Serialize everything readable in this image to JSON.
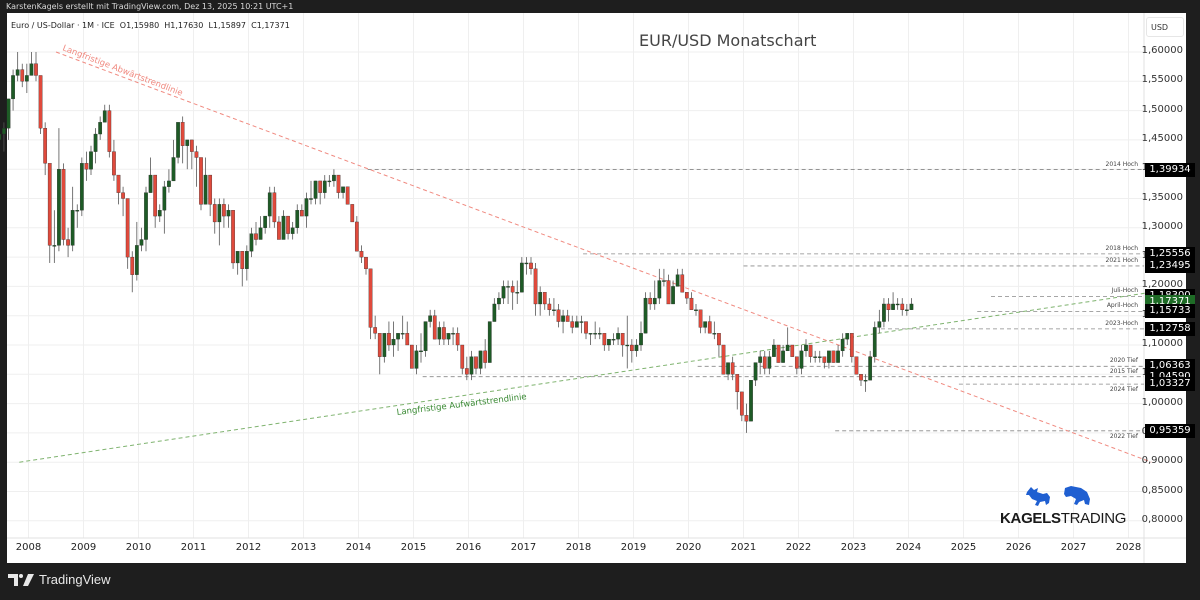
{
  "header": {
    "attribution": "KarstenKagels erstellt mit TradingView.com, Dez 13, 2025 10:21 UTC+1"
  },
  "legend": {
    "symbol": "Euro / US-Dollar · 1M · ICE",
    "open": "O1,15980",
    "high": "H1,17630",
    "low": "L1,15897",
    "close": "C1,17371"
  },
  "footer": {
    "logo_text": "TradingView"
  },
  "brand": {
    "bold": "KAGELS",
    "light": "TRADING",
    "color": "#1f5fd1"
  },
  "chart_data": {
    "type": "candlestick",
    "title": "EUR/USD Monatschart",
    "xlabel": "",
    "ylabel": "USD",
    "currency": "USD",
    "interval": "1M",
    "ylim": [
      0.78,
      1.63
    ],
    "grid": true,
    "x_ticks": [
      "2008",
      "2009",
      "2010",
      "2011",
      "2012",
      "2013",
      "2014",
      "2015",
      "2016",
      "2017",
      "2018",
      "2019",
      "2020",
      "2021",
      "2022",
      "2023",
      "2024",
      "2025",
      "2026",
      "2027",
      "2028"
    ],
    "y_ticks": [
      "1,60000",
      "1,55000",
      "1,50000",
      "1,45000",
      "1,40000",
      "1,35000",
      "1,30000",
      "1,25000",
      "1,20000",
      "1,15000",
      "1,10000",
      "1,05000",
      "1,00000",
      "0,95000",
      "0,90000",
      "0,85000",
      "0,80000"
    ],
    "y_tick_values": [
      1.6,
      1.55,
      1.5,
      1.45,
      1.4,
      1.35,
      1.3,
      1.25,
      1.2,
      1.15,
      1.1,
      1.05,
      1.0,
      0.95,
      0.9,
      0.85,
      0.8
    ],
    "colors": {
      "up": "#1e5b26",
      "down": "#e04a3c",
      "downtrend": "#f08a80",
      "uptrend": "#7fb36f",
      "level": "#888888"
    },
    "start": "2007-11",
    "candles_ohlc": [
      [
        1.45,
        1.49,
        1.44,
        1.46
      ],
      [
        1.46,
        1.48,
        1.43,
        1.47
      ],
      [
        1.47,
        1.52,
        1.45,
        1.52
      ],
      [
        1.52,
        1.57,
        1.5,
        1.56
      ],
      [
        1.56,
        1.6,
        1.55,
        1.57
      ],
      [
        1.57,
        1.58,
        1.54,
        1.55
      ],
      [
        1.55,
        1.58,
        1.53,
        1.56
      ],
      [
        1.56,
        1.6,
        1.56,
        1.58
      ],
      [
        1.58,
        1.6,
        1.55,
        1.56
      ],
      [
        1.56,
        1.56,
        1.46,
        1.47
      ],
      [
        1.47,
        1.48,
        1.39,
        1.41
      ],
      [
        1.41,
        1.41,
        1.24,
        1.27
      ],
      [
        1.27,
        1.33,
        1.24,
        1.27
      ],
      [
        1.27,
        1.47,
        1.26,
        1.4
      ],
      [
        1.4,
        1.41,
        1.27,
        1.28
      ],
      [
        1.28,
        1.3,
        1.25,
        1.27
      ],
      [
        1.27,
        1.37,
        1.26,
        1.33
      ],
      [
        1.33,
        1.34,
        1.3,
        1.33
      ],
      [
        1.33,
        1.42,
        1.32,
        1.41
      ],
      [
        1.41,
        1.43,
        1.38,
        1.4
      ],
      [
        1.4,
        1.44,
        1.39,
        1.43
      ],
      [
        1.43,
        1.47,
        1.41,
        1.46
      ],
      [
        1.46,
        1.49,
        1.45,
        1.48
      ],
      [
        1.48,
        1.51,
        1.49,
        1.5
      ],
      [
        1.5,
        1.51,
        1.42,
        1.43
      ],
      [
        1.43,
        1.45,
        1.38,
        1.39
      ],
      [
        1.39,
        1.38,
        1.34,
        1.36
      ],
      [
        1.36,
        1.37,
        1.32,
        1.35
      ],
      [
        1.35,
        1.35,
        1.23,
        1.25
      ],
      [
        1.25,
        1.26,
        1.19,
        1.22
      ],
      [
        1.22,
        1.31,
        1.21,
        1.27
      ],
      [
        1.27,
        1.3,
        1.26,
        1.28
      ],
      [
        1.28,
        1.37,
        1.26,
        1.36
      ],
      [
        1.36,
        1.42,
        1.36,
        1.39
      ],
      [
        1.39,
        1.39,
        1.3,
        1.32
      ],
      [
        1.32,
        1.34,
        1.31,
        1.33
      ],
      [
        1.33,
        1.38,
        1.29,
        1.37
      ],
      [
        1.37,
        1.4,
        1.36,
        1.38
      ],
      [
        1.38,
        1.45,
        1.38,
        1.42
      ],
      [
        1.42,
        1.48,
        1.41,
        1.48
      ],
      [
        1.48,
        1.49,
        1.41,
        1.44
      ],
      [
        1.44,
        1.45,
        1.4,
        1.45
      ],
      [
        1.45,
        1.45,
        1.4,
        1.43
      ],
      [
        1.43,
        1.44,
        1.37,
        1.42
      ],
      [
        1.42,
        1.42,
        1.33,
        1.34
      ],
      [
        1.34,
        1.42,
        1.34,
        1.39
      ],
      [
        1.39,
        1.39,
        1.32,
        1.34
      ],
      [
        1.34,
        1.35,
        1.29,
        1.31
      ],
      [
        1.31,
        1.35,
        1.27,
        1.34
      ],
      [
        1.34,
        1.35,
        1.3,
        1.32
      ],
      [
        1.32,
        1.34,
        1.3,
        1.33
      ],
      [
        1.33,
        1.33,
        1.23,
        1.24
      ],
      [
        1.24,
        1.26,
        1.22,
        1.26
      ],
      [
        1.26,
        1.26,
        1.2,
        1.23
      ],
      [
        1.23,
        1.27,
        1.21,
        1.26
      ],
      [
        1.26,
        1.3,
        1.25,
        1.29
      ],
      [
        1.29,
        1.31,
        1.27,
        1.28
      ],
      [
        1.28,
        1.32,
        1.28,
        1.3
      ],
      [
        1.3,
        1.32,
        1.29,
        1.32
      ],
      [
        1.32,
        1.37,
        1.3,
        1.36
      ],
      [
        1.36,
        1.37,
        1.3,
        1.31
      ],
      [
        1.31,
        1.32,
        1.28,
        1.28
      ],
      [
        1.28,
        1.33,
        1.28,
        1.32
      ],
      [
        1.32,
        1.32,
        1.28,
        1.29
      ],
      [
        1.29,
        1.31,
        1.28,
        1.3
      ],
      [
        1.3,
        1.34,
        1.29,
        1.33
      ],
      [
        1.33,
        1.34,
        1.32,
        1.32
      ],
      [
        1.32,
        1.36,
        1.3,
        1.35
      ],
      [
        1.35,
        1.38,
        1.34,
        1.35
      ],
      [
        1.35,
        1.38,
        1.34,
        1.38
      ],
      [
        1.38,
        1.38,
        1.34,
        1.36
      ],
      [
        1.36,
        1.39,
        1.35,
        1.38
      ],
      [
        1.38,
        1.39,
        1.37,
        1.38
      ],
      [
        1.38,
        1.4,
        1.37,
        1.39
      ],
      [
        1.39,
        1.39,
        1.35,
        1.36
      ],
      [
        1.36,
        1.37,
        1.35,
        1.37
      ],
      [
        1.37,
        1.37,
        1.34,
        1.34
      ],
      [
        1.34,
        1.34,
        1.31,
        1.31
      ],
      [
        1.31,
        1.32,
        1.26,
        1.26
      ],
      [
        1.26,
        1.27,
        1.24,
        1.25
      ],
      [
        1.25,
        1.25,
        1.22,
        1.23
      ],
      [
        1.23,
        1.23,
        1.11,
        1.13
      ],
      [
        1.13,
        1.15,
        1.11,
        1.12
      ],
      [
        1.12,
        1.12,
        1.05,
        1.08
      ],
      [
        1.08,
        1.12,
        1.07,
        1.12
      ],
      [
        1.12,
        1.14,
        1.09,
        1.1
      ],
      [
        1.1,
        1.14,
        1.08,
        1.11
      ],
      [
        1.11,
        1.12,
        1.09,
        1.12
      ],
      [
        1.12,
        1.15,
        1.11,
        1.12
      ],
      [
        1.12,
        1.14,
        1.1,
        1.1
      ],
      [
        1.1,
        1.1,
        1.06,
        1.06
      ],
      [
        1.06,
        1.1,
        1.05,
        1.09
      ],
      [
        1.09,
        1.12,
        1.07,
        1.09
      ],
      [
        1.09,
        1.14,
        1.08,
        1.14
      ],
      [
        1.14,
        1.16,
        1.13,
        1.15
      ],
      [
        1.15,
        1.16,
        1.11,
        1.11
      ],
      [
        1.11,
        1.14,
        1.1,
        1.13
      ],
      [
        1.13,
        1.14,
        1.1,
        1.11
      ],
      [
        1.11,
        1.12,
        1.1,
        1.12
      ],
      [
        1.12,
        1.13,
        1.1,
        1.12
      ],
      [
        1.12,
        1.13,
        1.09,
        1.1
      ],
      [
        1.1,
        1.1,
        1.05,
        1.06
      ],
      [
        1.06,
        1.08,
        1.04,
        1.05
      ],
      [
        1.05,
        1.09,
        1.04,
        1.08
      ],
      [
        1.08,
        1.08,
        1.05,
        1.06
      ],
      [
        1.06,
        1.09,
        1.05,
        1.09
      ],
      [
        1.09,
        1.11,
        1.06,
        1.07
      ],
      [
        1.07,
        1.14,
        1.07,
        1.14
      ],
      [
        1.14,
        1.18,
        1.14,
        1.17
      ],
      [
        1.17,
        1.19,
        1.16,
        1.18
      ],
      [
        1.18,
        1.21,
        1.17,
        1.2
      ],
      [
        1.2,
        1.21,
        1.17,
        1.2
      ],
      [
        1.2,
        1.21,
        1.16,
        1.19
      ],
      [
        1.19,
        1.21,
        1.17,
        1.19
      ],
      [
        1.19,
        1.25,
        1.19,
        1.24
      ],
      [
        1.24,
        1.25,
        1.22,
        1.24
      ],
      [
        1.24,
        1.25,
        1.22,
        1.23
      ],
      [
        1.23,
        1.24,
        1.15,
        1.17
      ],
      [
        1.17,
        1.2,
        1.15,
        1.19
      ],
      [
        1.19,
        1.19,
        1.16,
        1.17
      ],
      [
        1.17,
        1.18,
        1.15,
        1.16
      ],
      [
        1.16,
        1.18,
        1.15,
        1.16
      ],
      [
        1.16,
        1.17,
        1.13,
        1.14
      ],
      [
        1.14,
        1.16,
        1.12,
        1.15
      ],
      [
        1.15,
        1.16,
        1.14,
        1.14
      ],
      [
        1.14,
        1.15,
        1.12,
        1.13
      ],
      [
        1.13,
        1.15,
        1.13,
        1.14
      ],
      [
        1.14,
        1.15,
        1.12,
        1.14
      ],
      [
        1.14,
        1.14,
        1.11,
        1.12
      ],
      [
        1.12,
        1.12,
        1.1,
        1.12
      ],
      [
        1.12,
        1.14,
        1.11,
        1.12
      ],
      [
        1.12,
        1.13,
        1.11,
        1.12
      ],
      [
        1.12,
        1.12,
        1.09,
        1.1
      ],
      [
        1.1,
        1.11,
        1.09,
        1.11
      ],
      [
        1.11,
        1.12,
        1.1,
        1.11
      ],
      [
        1.11,
        1.13,
        1.1,
        1.12
      ],
      [
        1.12,
        1.12,
        1.08,
        1.1
      ],
      [
        1.1,
        1.15,
        1.06,
        1.1
      ],
      [
        1.1,
        1.11,
        1.07,
        1.09
      ],
      [
        1.09,
        1.11,
        1.08,
        1.1
      ],
      [
        1.1,
        1.14,
        1.09,
        1.12
      ],
      [
        1.12,
        1.19,
        1.12,
        1.18
      ],
      [
        1.18,
        1.19,
        1.16,
        1.17
      ],
      [
        1.17,
        1.21,
        1.16,
        1.18
      ],
      [
        1.18,
        1.23,
        1.17,
        1.21
      ],
      [
        1.21,
        1.23,
        1.2,
        1.21
      ],
      [
        1.21,
        1.22,
        1.18,
        1.17
      ],
      [
        1.17,
        1.21,
        1.17,
        1.2
      ],
      [
        1.2,
        1.23,
        1.2,
        1.22
      ],
      [
        1.22,
        1.23,
        1.19,
        1.19
      ],
      [
        1.19,
        1.19,
        1.17,
        1.18
      ],
      [
        1.18,
        1.19,
        1.17,
        1.16
      ],
      [
        1.16,
        1.17,
        1.15,
        1.16
      ],
      [
        1.16,
        1.16,
        1.12,
        1.13
      ],
      [
        1.13,
        1.14,
        1.12,
        1.14
      ],
      [
        1.14,
        1.15,
        1.12,
        1.12
      ],
      [
        1.12,
        1.14,
        1.11,
        1.12
      ],
      [
        1.12,
        1.12,
        1.08,
        1.1
      ],
      [
        1.1,
        1.1,
        1.05,
        1.05
      ],
      [
        1.05,
        1.07,
        1.04,
        1.07
      ],
      [
        1.07,
        1.08,
        1.04,
        1.05
      ],
      [
        1.05,
        1.04,
        0.99,
        1.02
      ],
      [
        1.02,
        1.02,
        0.97,
        0.98
      ],
      [
        0.98,
        1.0,
        0.95,
        0.97
      ],
      [
        0.97,
        1.04,
        0.97,
        1.04
      ],
      [
        1.04,
        1.07,
        1.03,
        1.07
      ],
      [
        1.07,
        1.09,
        1.05,
        1.08
      ],
      [
        1.08,
        1.09,
        1.05,
        1.06
      ],
      [
        1.06,
        1.09,
        1.05,
        1.08
      ],
      [
        1.08,
        1.11,
        1.08,
        1.1
      ],
      [
        1.1,
        1.1,
        1.07,
        1.07
      ],
      [
        1.07,
        1.1,
        1.07,
        1.09
      ],
      [
        1.09,
        1.13,
        1.09,
        1.1
      ],
      [
        1.1,
        1.1,
        1.08,
        1.08
      ],
      [
        1.08,
        1.08,
        1.05,
        1.06
      ],
      [
        1.06,
        1.1,
        1.05,
        1.09
      ],
      [
        1.09,
        1.11,
        1.08,
        1.1
      ],
      [
        1.1,
        1.1,
        1.07,
        1.08
      ],
      [
        1.08,
        1.09,
        1.07,
        1.08
      ],
      [
        1.08,
        1.09,
        1.07,
        1.08
      ],
      [
        1.08,
        1.08,
        1.06,
        1.07
      ],
      [
        1.07,
        1.09,
        1.06,
        1.09
      ],
      [
        1.09,
        1.09,
        1.07,
        1.07
      ],
      [
        1.07,
        1.1,
        1.07,
        1.09
      ],
      [
        1.09,
        1.12,
        1.08,
        1.11
      ],
      [
        1.11,
        1.12,
        1.1,
        1.12
      ],
      [
        1.12,
        1.12,
        1.07,
        1.08
      ],
      [
        1.08,
        1.08,
        1.05,
        1.05
      ],
      [
        1.05,
        1.05,
        1.03,
        1.04
      ],
      [
        1.04,
        1.05,
        1.02,
        1.04
      ],
      [
        1.04,
        1.09,
        1.04,
        1.08
      ],
      [
        1.08,
        1.14,
        1.07,
        1.13
      ],
      [
        1.13,
        1.16,
        1.12,
        1.14
      ],
      [
        1.14,
        1.18,
        1.13,
        1.17
      ],
      [
        1.17,
        1.18,
        1.14,
        1.16
      ],
      [
        1.16,
        1.19,
        1.16,
        1.17
      ],
      [
        1.17,
        1.18,
        1.16,
        1.17
      ],
      [
        1.17,
        1.18,
        1.15,
        1.16
      ],
      [
        1.16,
        1.17,
        1.15,
        1.16
      ],
      [
        1.16,
        1.18,
        1.16,
        1.17
      ]
    ],
    "last_price": "1,17371",
    "trendlines": [
      {
        "name": "Langfristige Abwärtstrendlinie",
        "from": [
          "2008-07",
          1.6
        ],
        "to": [
          "2028-06",
          0.9
        ],
        "color": "#f08a80",
        "style": "dashed"
      },
      {
        "name": "Langfristige Aufwärtstrendlinie",
        "from": [
          "2007-11",
          0.9
        ],
        "to": [
          "2028-06",
          1.19
        ],
        "color": "#7fb36f",
        "style": "dashed"
      }
    ],
    "levels": [
      {
        "label": "2014 Hoch",
        "value": "1,39934",
        "price": 1.39934,
        "start": "2014-03"
      },
      {
        "label": "2018 Hoch",
        "value": "1,25556",
        "price": 1.25556,
        "start": "2018-02"
      },
      {
        "label": "2021 Hoch",
        "value": "1,23495",
        "price": 1.23495,
        "start": "2021-01"
      },
      {
        "label": "Juli-Hoch",
        "value": "1,18300",
        "price": 1.183,
        "start": "2025-07"
      },
      {
        "label": "",
        "value": "1,17371",
        "price": 1.17371,
        "start": null,
        "current": true
      },
      {
        "label": "April-Hoch",
        "value": "1,15733",
        "price": 1.15733,
        "start": "2025-04"
      },
      {
        "label": "2023-Hoch",
        "value": "1,12758",
        "price": 1.12758,
        "start": "2023-07"
      },
      {
        "label": "2020 Tief",
        "value": "1,06363",
        "price": 1.06363,
        "start": "2020-03"
      },
      {
        "label": "2015 Tief",
        "value": "1,04590",
        "price": 1.0459,
        "start": "2015-03"
      },
      {
        "label": "2024 Tief",
        "value": "1,03327",
        "price": 1.03327,
        "start": "2024-12"
      },
      {
        "label": "2022 Tief",
        "value": "0,95359",
        "price": 0.95359,
        "start": "2022-09"
      }
    ]
  }
}
